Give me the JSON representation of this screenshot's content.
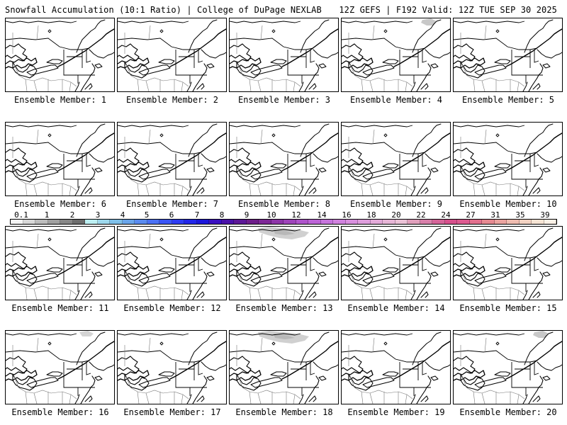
{
  "header": {
    "left": "Snowfall Accumulation (10:1 Ratio) | College of DuPage NEXLAB",
    "right": "12Z GEFS | F192 Valid: 12Z TUE SEP 30 2025"
  },
  "members": [
    {
      "label": "Ensemble Member: 1",
      "snow": []
    },
    {
      "label": "Ensemble Member: 2",
      "snow": []
    },
    {
      "label": "Ensemble Member: 3",
      "snow": []
    },
    {
      "label": "Ensemble Member: 4",
      "snow": [
        "northeast"
      ]
    },
    {
      "label": "Ensemble Member: 5",
      "snow": []
    },
    {
      "label": "Ensemble Member: 6",
      "snow": []
    },
    {
      "label": "Ensemble Member: 7",
      "snow": []
    },
    {
      "label": "Ensemble Member: 8",
      "snow": []
    },
    {
      "label": "Ensemble Member: 9",
      "snow": []
    },
    {
      "label": "Ensemble Member: 10",
      "snow": []
    },
    {
      "label": "Ensemble Member: 11",
      "snow": []
    },
    {
      "label": "Ensemble Member: 12",
      "snow": []
    },
    {
      "label": "Ensemble Member: 13",
      "snow": [
        "north-wide"
      ]
    },
    {
      "label": "Ensemble Member: 14",
      "snow": []
    },
    {
      "label": "Ensemble Member: 15",
      "snow": []
    },
    {
      "label": "Ensemble Member: 16",
      "snow": [
        "north"
      ]
    },
    {
      "label": "Ensemble Member: 17",
      "snow": []
    },
    {
      "label": "Ensemble Member: 18",
      "snow": [
        "north-wide"
      ]
    },
    {
      "label": "Ensemble Member: 19",
      "snow": []
    },
    {
      "label": "Ensemble Member: 20",
      "snow": [
        "northeast"
      ]
    }
  ],
  "colorbar": {
    "ticks": [
      "0.1",
      "1",
      "2",
      "3",
      "4",
      "5",
      "6",
      "7",
      "8",
      "9",
      "10",
      "12",
      "14",
      "16",
      "18",
      "20",
      "22",
      "24",
      "27",
      "31",
      "35",
      "39"
    ],
    "colors": [
      "#f4f4f4",
      "#d8d8d8",
      "#bcbcbc",
      "#a0a0a0",
      "#878787",
      "#6e6e6e",
      "#bdeff2",
      "#9ed8ec",
      "#7fbfe8",
      "#6aa5ea",
      "#5a8bef",
      "#4a70f4",
      "#3a55f6",
      "#2e3cf2",
      "#2226e8",
      "#1c16da",
      "#3a10c0",
      "#4a12a8",
      "#5c1896",
      "#6e1e8a",
      "#7e2896",
      "#8e36a8",
      "#9e44ba",
      "#ae54ca",
      "#bc64d6",
      "#c674dc",
      "#d082de",
      "#d890de",
      "#de9edc",
      "#e2aad8",
      "#e6b6d6",
      "#eac2d6",
      "#e0a0bc",
      "#d880aa",
      "#d46498",
      "#d6508c",
      "#dc5a90",
      "#e2708e",
      "#e68a92",
      "#eaa4a0",
      "#eebcb0",
      "#f2d2c2",
      "#f6e4d4",
      "#faf0e6"
    ]
  }
}
